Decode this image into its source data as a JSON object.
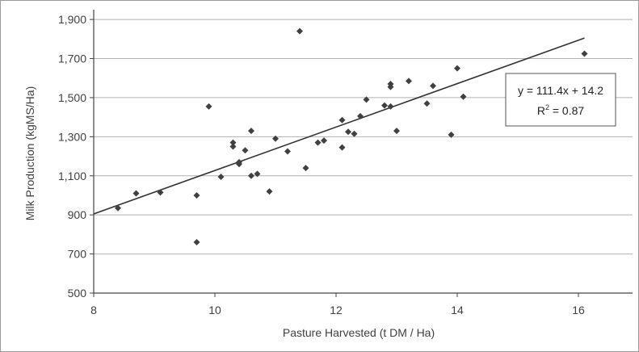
{
  "chart_data": {
    "type": "scatter",
    "xlabel": "Pasture Harvested (t DM / Ha)",
    "ylabel": "Milk Production (kgMS/Ha)",
    "xlim": [
      8,
      17
    ],
    "ylim": [
      500,
      1950
    ],
    "x_ticks": [
      8,
      10,
      12,
      14,
      16
    ],
    "y_ticks": [
      500,
      700,
      900,
      1100,
      1300,
      1500,
      1700,
      1900
    ],
    "x_tick_labels": [
      "8",
      "10",
      "12",
      "14",
      "16"
    ],
    "y_tick_labels": [
      "500",
      "700",
      "900",
      "1,100",
      "1,300",
      "1,500",
      "1,700",
      "1,900"
    ],
    "grid": "horizontal",
    "marker_color": "#404040",
    "line_color": "#333333",
    "points": [
      {
        "x": 8.4,
        "y": 935
      },
      {
        "x": 8.7,
        "y": 1010
      },
      {
        "x": 9.1,
        "y": 1015
      },
      {
        "x": 9.7,
        "y": 1000
      },
      {
        "x": 9.7,
        "y": 760
      },
      {
        "x": 9.9,
        "y": 1455
      },
      {
        "x": 10.1,
        "y": 1095
      },
      {
        "x": 10.3,
        "y": 1270
      },
      {
        "x": 10.3,
        "y": 1250
      },
      {
        "x": 10.4,
        "y": 1170
      },
      {
        "x": 10.4,
        "y": 1160
      },
      {
        "x": 10.5,
        "y": 1230
      },
      {
        "x": 10.6,
        "y": 1330
      },
      {
        "x": 10.6,
        "y": 1100
      },
      {
        "x": 10.7,
        "y": 1110
      },
      {
        "x": 10.9,
        "y": 1020
      },
      {
        "x": 11.0,
        "y": 1290
      },
      {
        "x": 11.2,
        "y": 1225
      },
      {
        "x": 11.4,
        "y": 1840
      },
      {
        "x": 11.5,
        "y": 1140
      },
      {
        "x": 11.7,
        "y": 1270
      },
      {
        "x": 11.8,
        "y": 1280
      },
      {
        "x": 12.1,
        "y": 1385
      },
      {
        "x": 12.1,
        "y": 1245
      },
      {
        "x": 12.2,
        "y": 1325
      },
      {
        "x": 12.3,
        "y": 1315
      },
      {
        "x": 12.4,
        "y": 1405
      },
      {
        "x": 12.5,
        "y": 1490
      },
      {
        "x": 12.8,
        "y": 1460
      },
      {
        "x": 12.9,
        "y": 1570
      },
      {
        "x": 12.9,
        "y": 1555
      },
      {
        "x": 12.9,
        "y": 1455
      },
      {
        "x": 13.0,
        "y": 1330
      },
      {
        "x": 13.2,
        "y": 1585
      },
      {
        "x": 13.5,
        "y": 1470
      },
      {
        "x": 13.6,
        "y": 1560
      },
      {
        "x": 13.9,
        "y": 1310
      },
      {
        "x": 14.0,
        "y": 1650
      },
      {
        "x": 14.1,
        "y": 1505
      },
      {
        "x": 16.1,
        "y": 1725
      }
    ],
    "trendline": {
      "slope": 111.4,
      "intercept": 14.2,
      "x_start": 8,
      "x_end": 16.1,
      "y_start": 905,
      "y_end": 1805
    },
    "annotation": {
      "equation": "y = 111.4x + 14.2",
      "r_squared_prefix": "R",
      "r_squared_sup": "2",
      "r_squared_value": " = 0.87"
    }
  }
}
